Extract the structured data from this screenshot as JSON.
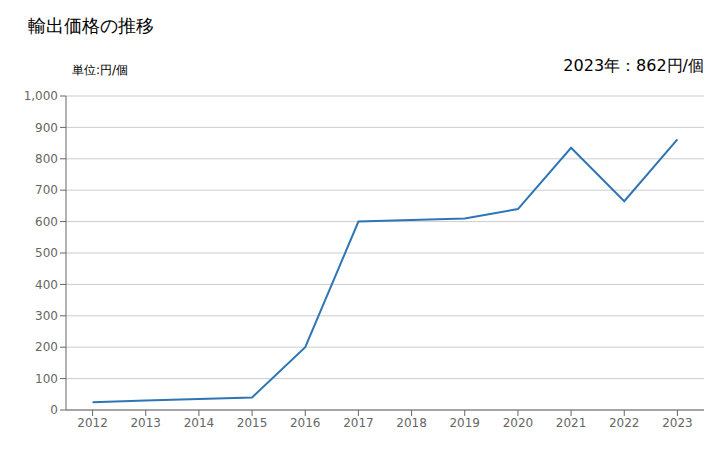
{
  "chart_data": {
    "type": "line",
    "title": "輸出価格の推移",
    "ylabel": "単位:円/個",
    "annotation": "2023年：862円/個",
    "x": [
      2012,
      2013,
      2014,
      2015,
      2016,
      2017,
      2018,
      2019,
      2020,
      2021,
      2022,
      2023
    ],
    "values": [
      25,
      30,
      35,
      40,
      200,
      600,
      605,
      610,
      640,
      835,
      665,
      862
    ],
    "color": "#2e75b6",
    "xlim": [
      2011.5,
      2023.5
    ],
    "xticks": [
      2012,
      2013,
      2014,
      2015,
      2016,
      2017,
      2018,
      2019,
      2020,
      2021,
      2022,
      2023
    ],
    "ylim": [
      0,
      1000
    ],
    "yticks": [
      0,
      100,
      200,
      300,
      400,
      500,
      600,
      700,
      800,
      900,
      {
        "value": 1000,
        "label": "1,000"
      }
    ],
    "grid": true
  }
}
